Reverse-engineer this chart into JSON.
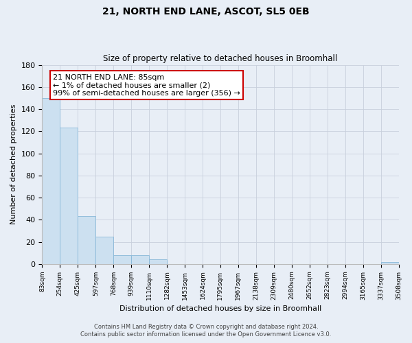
{
  "title": "21, NORTH END LANE, ASCOT, SL5 0EB",
  "subtitle": "Size of property relative to detached houses in Broomhall",
  "xlabel": "Distribution of detached houses by size in Broomhall",
  "ylabel": "Number of detached properties",
  "bar_edges": [
    83,
    254,
    425,
    597,
    768,
    939,
    1110,
    1282,
    1453,
    1624,
    1795,
    1967,
    2138,
    2309,
    2480,
    2652,
    2823,
    2994,
    3165,
    3337,
    3508
  ],
  "bar_heights": [
    150,
    123,
    43,
    25,
    8,
    8,
    4,
    0,
    0,
    0,
    0,
    0,
    0,
    0,
    0,
    0,
    0,
    0,
    0,
    2
  ],
  "bar_color": "#cce0f0",
  "bar_edge_color": "#88b8d8",
  "annotation_title": "21 NORTH END LANE: 85sqm",
  "annotation_line1": "← 1% of detached houses are smaller (2)",
  "annotation_line2": "99% of semi-detached houses are larger (356) →",
  "annotation_box_color": "#ffffff",
  "annotation_box_edge_color": "#cc0000",
  "property_size": 85,
  "ylim": [
    0,
    180
  ],
  "yticks": [
    0,
    20,
    40,
    60,
    80,
    100,
    120,
    140,
    160,
    180
  ],
  "background_color": "#e8eef6",
  "grid_color": "#c8d0dc",
  "footer_line1": "Contains HM Land Registry data © Crown copyright and database right 2024.",
  "footer_line2": "Contains public sector information licensed under the Open Government Licence v3.0."
}
